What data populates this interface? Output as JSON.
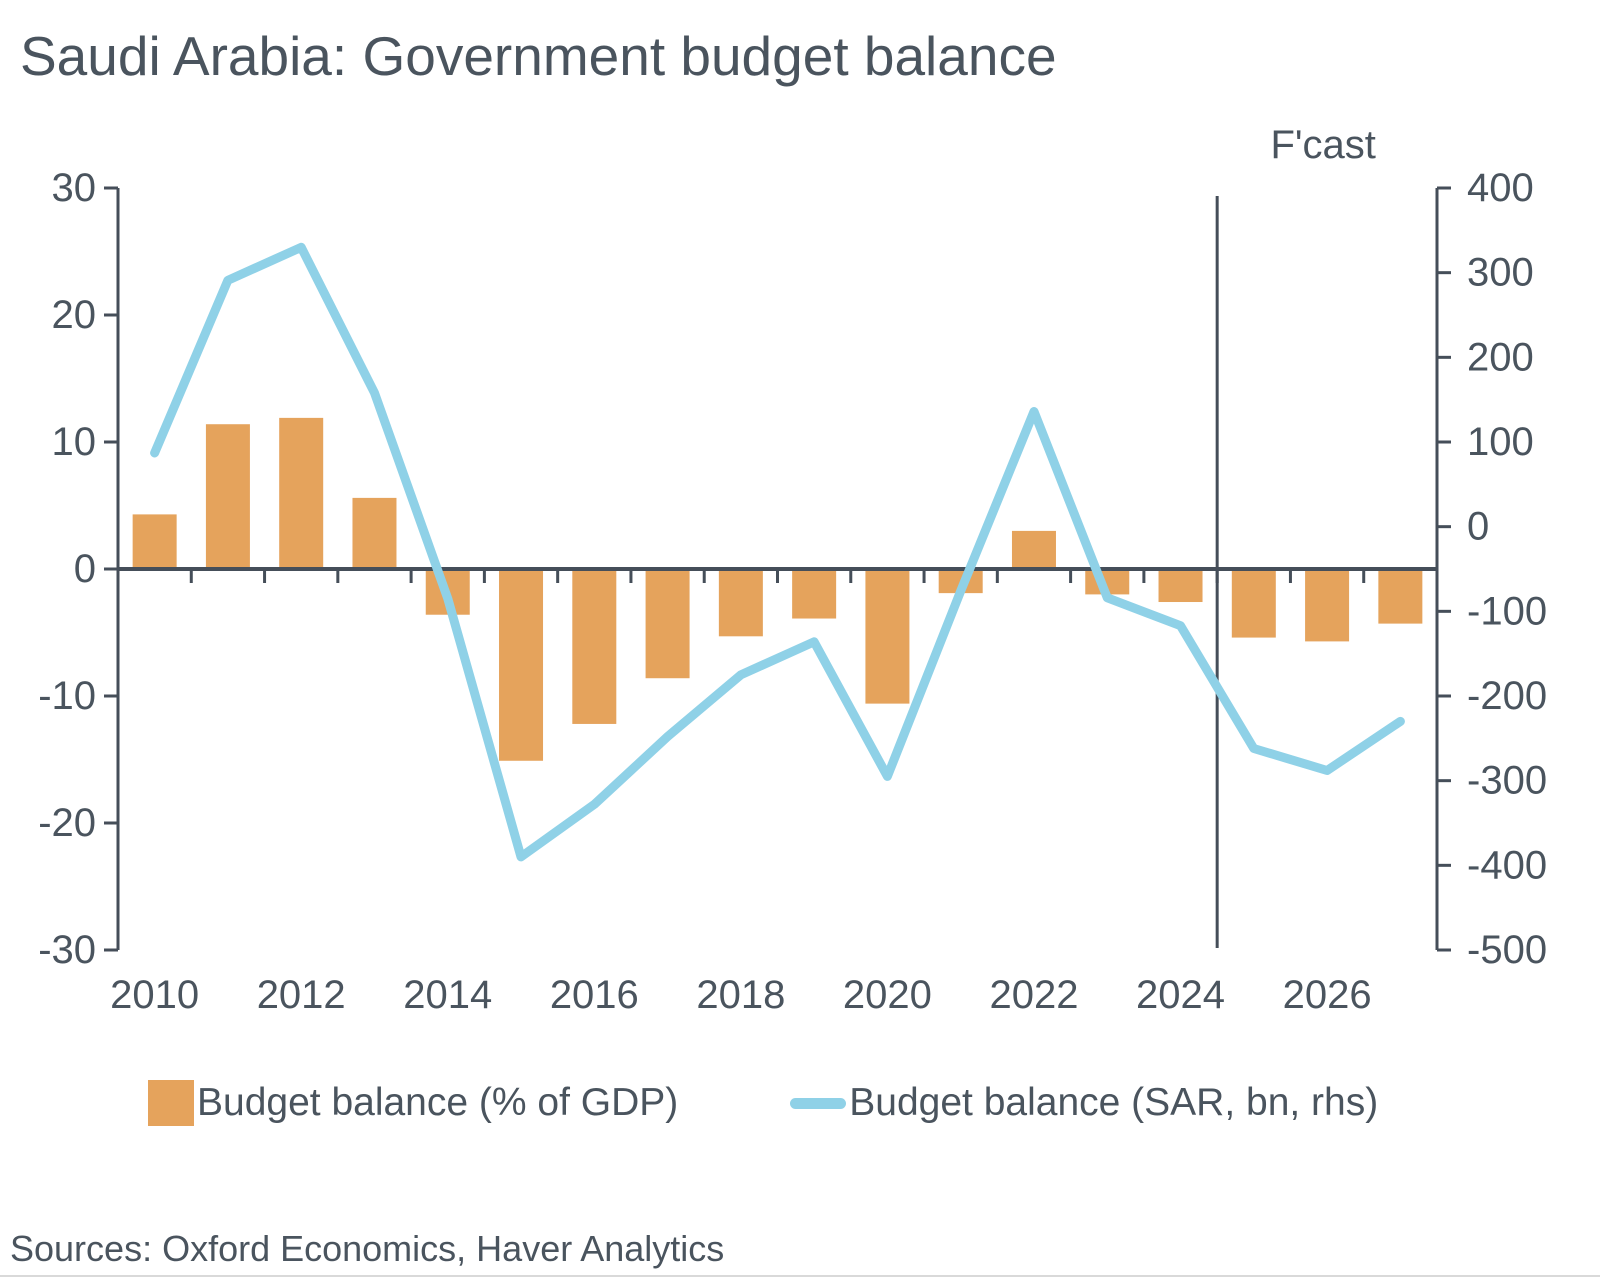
{
  "page": {
    "title": "Saudi Arabia: Government budget balance",
    "sources": "Sources: Oxford Economics, Haver Analytics"
  },
  "legend": [
    {
      "label": "Budget balance (% of GDP)",
      "marker": "bar-swatch-icon",
      "color": "#e5a35c"
    },
    {
      "label": "Budget balance (SAR, bn, rhs)",
      "marker": "line-swatch-icon",
      "color": "#8fd1e7"
    }
  ],
  "chart_data": {
    "type": "bar",
    "subtype": "bar+line dual axis",
    "categories": [
      "2010",
      "2011",
      "2012",
      "2013",
      "2014",
      "2015",
      "2016",
      "2017",
      "2018",
      "2019",
      "2020",
      "2021",
      "2022",
      "2023",
      "2024",
      "2025",
      "2026",
      "2027"
    ],
    "series": [
      {
        "name": "Budget balance (% of GDP)",
        "type": "bar",
        "axis": "left",
        "color": "#e5a35c",
        "values": [
          4.3,
          11.4,
          11.9,
          5.6,
          -3.6,
          -15.1,
          -12.2,
          -8.6,
          -5.3,
          -3.9,
          -10.6,
          -1.9,
          3.0,
          -2.0,
          -2.6,
          -5.4,
          -5.7,
          -4.3
        ]
      },
      {
        "name": "Budget balance (SAR, bn, rhs)",
        "type": "line",
        "axis": "right",
        "color": "#8fd1e7",
        "values": [
          87,
          291,
          330,
          158,
          -85,
          -390,
          -328,
          -248,
          -175,
          -136,
          -295,
          -76,
          136,
          -84,
          -117,
          -262,
          -288,
          -230
        ]
      }
    ],
    "left_axis": {
      "min": -30,
      "max": 30,
      "ticks": [
        30,
        20,
        10,
        0,
        -10,
        -20,
        -30
      ]
    },
    "right_axis": {
      "min": -500,
      "max": 400,
      "ticks": [
        400,
        300,
        200,
        100,
        0,
        -100,
        -200,
        -300,
        -400,
        -500
      ]
    },
    "x_tick_labels": [
      "2010",
      "2012",
      "2014",
      "2016",
      "2018",
      "2020",
      "2022",
      "2024",
      "2026"
    ],
    "forecast_boundary_index": 15,
    "forecast_label": "F'cast",
    "grid": false,
    "axis_color": "#454e59",
    "text_color": "#4a545e"
  }
}
